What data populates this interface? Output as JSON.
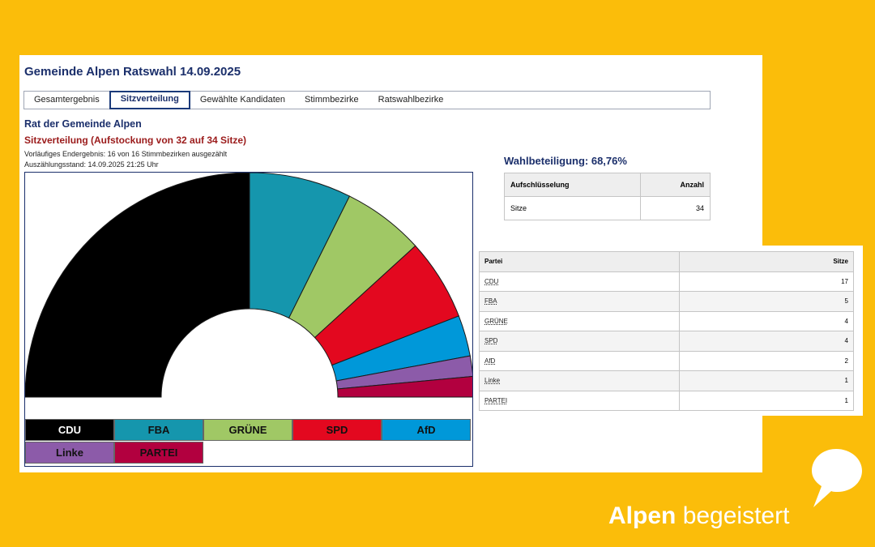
{
  "page": {
    "title": "Gemeinde Alpen Ratswahl 14.09.2025",
    "tabs": [
      "Gesamtergebnis",
      "Sitzverteilung",
      "Gewählte Kandidaten",
      "Stimmbezirke",
      "Ratswahlbezirke"
    ],
    "active_tab": "Sitzverteilung"
  },
  "section": {
    "title": "Rat der Gemeinde Alpen",
    "subtitle": "Sitzverteilung (Aufstockung von 32 auf 34 Sitze)",
    "status": "Vorläufiges Endergebnis: 16 von 16 Stimmbezirken ausgezählt",
    "timestamp": "Auszählungsstand: 14.09.2025 21:25 Uhr"
  },
  "chart_data": {
    "type": "pie",
    "variant": "half-donut-parliament",
    "categories": [
      "CDU",
      "FBA",
      "GRÜNE",
      "SPD",
      "AfD",
      "Linke",
      "PARTEI"
    ],
    "values": [
      17,
      5,
      4,
      4,
      2,
      1,
      1
    ],
    "colors": [
      "#000000",
      "#1596ad",
      "#a0c865",
      "#e3081f",
      "#0098d9",
      "#8c5ba9",
      "#b2003f"
    ],
    "legend_text_colors": [
      "#ffffff",
      "#111111",
      "#111111",
      "#111111",
      "#111111",
      "#111111",
      "#111111"
    ],
    "legend_position": "bottom"
  },
  "turnout": {
    "label": "Wahlbeteiligung: 68,76%",
    "table_headers": [
      "Aufschlüsselung",
      "Anzahl"
    ],
    "rows": [
      [
        "Sitze",
        "34"
      ]
    ]
  },
  "parties_table": {
    "headers": [
      "Partei",
      "Sitze"
    ],
    "rows": [
      [
        "CDU",
        "17"
      ],
      [
        "FBA",
        "5"
      ],
      [
        "GRÜNE",
        "4"
      ],
      [
        "SPD",
        "4"
      ],
      [
        "AfD",
        "2"
      ],
      [
        "Linke",
        "1"
      ],
      [
        "PARTEI",
        "1"
      ]
    ]
  },
  "brand": {
    "word1": "Alpen",
    "word2": "begeistert",
    "color": "#ffffff",
    "background": "#fbbd0a"
  }
}
